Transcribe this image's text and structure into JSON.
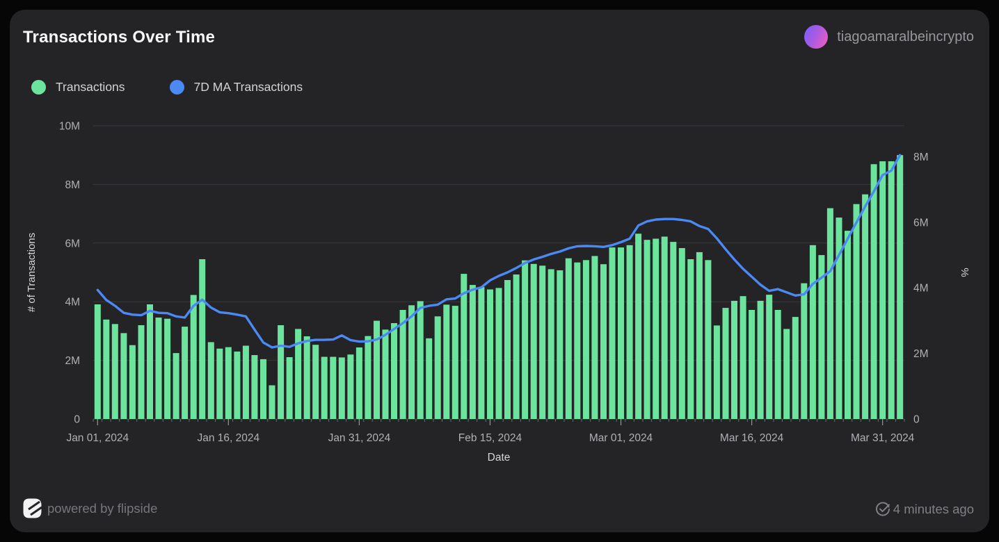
{
  "card": {
    "title": "Transactions Over Time",
    "user": {
      "name": "tiagoamaralbeincrypto"
    },
    "footer": {
      "powered_by": "powered by flipside",
      "updated": "4 minutes ago"
    }
  },
  "legend": [
    {
      "label": "Transactions",
      "color": "#6ce49d"
    },
    {
      "label": "7D MA Transactions",
      "color": "#4b89f5"
    }
  ],
  "chart_data": {
    "type": "bar+line",
    "title": "Transactions Over Time",
    "xlabel": "Date",
    "legend_position": "top-left",
    "grid": "horizontal",
    "colors": {
      "bar": "#6ce49d",
      "line": "#4b89f5",
      "gridline": "#39393c",
      "axis_text": "#b1b1b4",
      "axis_title": "#d6d6d8"
    },
    "x_dates": [
      "2024-01-01",
      "2024-01-02",
      "2024-01-03",
      "2024-01-04",
      "2024-01-05",
      "2024-01-06",
      "2024-01-07",
      "2024-01-08",
      "2024-01-09",
      "2024-01-10",
      "2024-01-11",
      "2024-01-12",
      "2024-01-13",
      "2024-01-14",
      "2024-01-15",
      "2024-01-16",
      "2024-01-17",
      "2024-01-18",
      "2024-01-19",
      "2024-01-20",
      "2024-01-21",
      "2024-01-22",
      "2024-01-23",
      "2024-01-24",
      "2024-01-25",
      "2024-01-26",
      "2024-01-27",
      "2024-01-28",
      "2024-01-29",
      "2024-01-30",
      "2024-01-31",
      "2024-02-01",
      "2024-02-02",
      "2024-02-03",
      "2024-02-04",
      "2024-02-05",
      "2024-02-06",
      "2024-02-07",
      "2024-02-08",
      "2024-02-09",
      "2024-02-10",
      "2024-02-11",
      "2024-02-12",
      "2024-02-13",
      "2024-02-14",
      "2024-02-15",
      "2024-02-16",
      "2024-02-17",
      "2024-02-18",
      "2024-02-19",
      "2024-02-20",
      "2024-02-21",
      "2024-02-22",
      "2024-02-23",
      "2024-02-24",
      "2024-02-25",
      "2024-02-26",
      "2024-02-27",
      "2024-02-28",
      "2024-02-29",
      "2024-03-01",
      "2024-03-02",
      "2024-03-03",
      "2024-03-04",
      "2024-03-05",
      "2024-03-06",
      "2024-03-07",
      "2024-03-08",
      "2024-03-09",
      "2024-03-10",
      "2024-03-11",
      "2024-03-12",
      "2024-03-13",
      "2024-03-14",
      "2024-03-15",
      "2024-03-16",
      "2024-03-17",
      "2024-03-18",
      "2024-03-19",
      "2024-03-20",
      "2024-03-21",
      "2024-03-22",
      "2024-03-23",
      "2024-03-24",
      "2024-03-25",
      "2024-03-26",
      "2024-03-27",
      "2024-03-28",
      "2024-03-29",
      "2024-03-30",
      "2024-03-31",
      "2024-04-01",
      "2024-04-02"
    ],
    "x_tick_indices": [
      0,
      15,
      30,
      45,
      60,
      75,
      90
    ],
    "x_tick_labels": [
      "Jan 01, 2024",
      "Jan 16, 2024",
      "Jan 31, 2024",
      "Feb 15, 2024",
      "Mar 01, 2024",
      "Mar 16, 2024",
      "Mar 31, 2024"
    ],
    "y_left": {
      "label": "# of Transactions",
      "ticks": [
        "0",
        "2M",
        "4M",
        "6M",
        "8M",
        "10M"
      ],
      "tick_values_m": [
        0,
        2,
        4,
        6,
        8,
        10
      ],
      "range_m": [
        0,
        10
      ]
    },
    "y_right": {
      "label": "%",
      "ticks": [
        "0",
        "2M",
        "4M",
        "6M",
        "8M"
      ],
      "tick_values_m": [
        0,
        2,
        4,
        6,
        8
      ],
      "value_at_plot_top_m": 8.94
    },
    "series": [
      {
        "name": "Transactions",
        "type": "bar",
        "unit": "M",
        "values": [
          3.91,
          3.39,
          3.24,
          2.93,
          2.52,
          3.2,
          3.91,
          3.46,
          3.42,
          2.25,
          3.15,
          4.23,
          5.45,
          2.62,
          2.4,
          2.45,
          2.3,
          2.5,
          2.18,
          2.04,
          1.15,
          3.2,
          2.11,
          3.07,
          2.82,
          2.53,
          2.12,
          2.12,
          2.1,
          2.2,
          2.44,
          2.83,
          3.35,
          3.05,
          3.27,
          3.72,
          3.88,
          4.02,
          2.75,
          3.5,
          3.9,
          3.86,
          4.95,
          4.57,
          4.5,
          4.42,
          4.47,
          4.74,
          4.93,
          5.41,
          5.29,
          5.23,
          5.11,
          5.07,
          5.48,
          5.34,
          5.42,
          5.56,
          5.28,
          5.85,
          5.85,
          5.93,
          6.32,
          6.11,
          6.15,
          6.22,
          6.04,
          5.83,
          5.45,
          5.69,
          5.42,
          3.19,
          3.79,
          4.03,
          4.19,
          3.72,
          4.03,
          4.24,
          3.72,
          3.07,
          3.48,
          4.63,
          5.93,
          5.59,
          7.19,
          6.87,
          6.42,
          7.33,
          7.66,
          8.69,
          8.79,
          8.79,
          9.0
        ]
      },
      {
        "name": "7D MA Transactions",
        "type": "line",
        "unit": "M",
        "values": [
          4.4,
          4.06,
          3.86,
          3.62,
          3.56,
          3.54,
          3.69,
          3.62,
          3.61,
          3.5,
          3.46,
          3.86,
          4.07,
          3.8,
          3.64,
          3.61,
          3.56,
          3.5,
          3.05,
          2.61,
          2.44,
          2.5,
          2.46,
          2.58,
          2.66,
          2.7,
          2.7,
          2.71,
          2.85,
          2.69,
          2.64,
          2.65,
          2.71,
          2.87,
          3.07,
          3.27,
          3.5,
          3.79,
          3.86,
          3.9,
          4.08,
          4.11,
          4.29,
          4.41,
          4.49,
          4.73,
          4.88,
          5.0,
          5.15,
          5.32,
          5.44,
          5.53,
          5.63,
          5.71,
          5.82,
          5.89,
          5.9,
          5.89,
          5.87,
          5.93,
          6.03,
          6.15,
          6.6,
          6.74,
          6.8,
          6.82,
          6.82,
          6.79,
          6.74,
          6.58,
          6.48,
          6.16,
          5.79,
          5.44,
          5.12,
          4.85,
          4.58,
          4.37,
          4.43,
          4.32,
          4.21,
          4.25,
          4.61,
          4.82,
          5.04,
          5.59,
          6.15,
          6.7,
          7.25,
          7.76,
          8.32,
          8.47,
          9.0
        ]
      }
    ]
  }
}
